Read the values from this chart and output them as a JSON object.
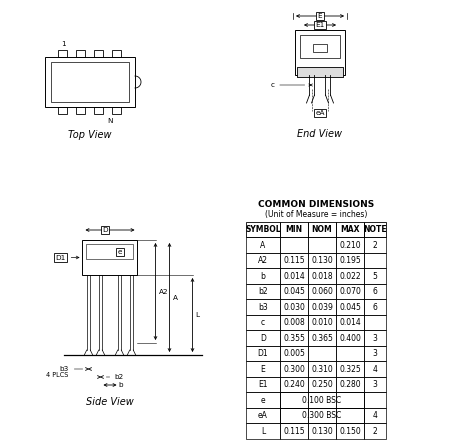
{
  "bg_color": "#ffffff",
  "table_title": "COMMON DIMENSIONS",
  "table_subtitle": "(Unit of Measure = inches)",
  "table_headers": [
    "SYMBOL",
    "MIN",
    "NOM",
    "MAX",
    "NOTE"
  ],
  "table_rows": [
    [
      "A",
      "",
      "",
      "0.210",
      "2"
    ],
    [
      "A2",
      "0.115",
      "0.130",
      "0.195",
      ""
    ],
    [
      "b",
      "0.014",
      "0.018",
      "0.022",
      "5"
    ],
    [
      "b2",
      "0.045",
      "0.060",
      "0.070",
      "6"
    ],
    [
      "b3",
      "0.030",
      "0.039",
      "0.045",
      "6"
    ],
    [
      "c",
      "0.008",
      "0.010",
      "0.014",
      ""
    ],
    [
      "D",
      "0.355",
      "0.365",
      "0.400",
      "3"
    ],
    [
      "D1",
      "0.005",
      "",
      "",
      "3"
    ],
    [
      "E",
      "0.300",
      "0.310",
      "0.325",
      "4"
    ],
    [
      "E1",
      "0.240",
      "0.250",
      "0.280",
      "3"
    ],
    [
      "e",
      "0.100 BSC",
      "",
      "",
      ""
    ],
    [
      "eA",
      "0.300 BSC",
      "",
      "",
      "4"
    ],
    [
      "L",
      "0.115",
      "0.130",
      "0.150",
      "2"
    ]
  ],
  "top_view_label": "Top View",
  "end_view_label": "End View",
  "side_view_label": "Side View"
}
